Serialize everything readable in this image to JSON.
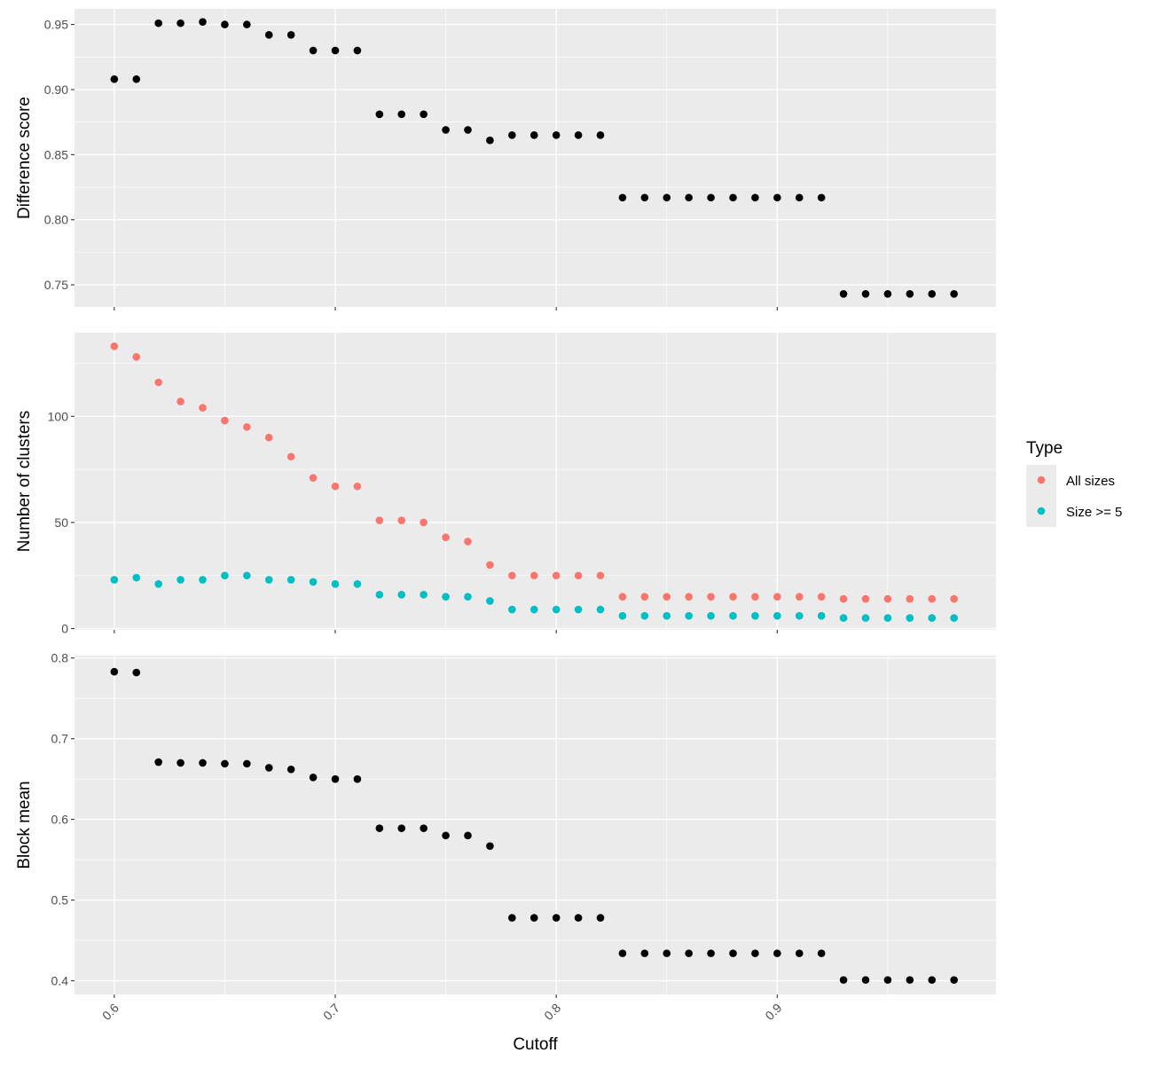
{
  "chart_data": {
    "type": "scatter",
    "x_label": "Cutoff",
    "x_range": [
      0.582,
      0.999
    ],
    "x_ticks": [
      0.6,
      0.7,
      0.8,
      0.9
    ],
    "x_tick_labels": [
      "0.6",
      "0.7",
      "0.8",
      "0.9"
    ],
    "x": [
      0.6,
      0.61,
      0.62,
      0.63,
      0.64,
      0.65,
      0.66,
      0.67,
      0.68,
      0.69,
      0.7,
      0.71,
      0.72,
      0.73,
      0.74,
      0.75,
      0.76,
      0.77,
      0.78,
      0.79,
      0.8,
      0.81,
      0.82,
      0.83,
      0.84,
      0.85,
      0.86,
      0.87,
      0.88,
      0.89,
      0.9,
      0.91,
      0.92,
      0.93,
      0.94,
      0.95,
      0.96,
      0.97,
      0.98
    ],
    "grid": true,
    "panels": [
      {
        "ylabel": "Difference score",
        "ylim": [
          0.733,
          0.962
        ],
        "y_ticks": [
          0.75,
          0.8,
          0.85,
          0.9,
          0.95
        ],
        "y_tick_labels": [
          "0.75",
          "0.80",
          "0.85",
          "0.90",
          "0.95"
        ],
        "series": [
          {
            "color": "#000000",
            "values": [
              0.908,
              0.908,
              0.951,
              0.951,
              0.952,
              0.95,
              0.95,
              0.942,
              0.942,
              0.93,
              0.93,
              0.93,
              0.881,
              0.881,
              0.881,
              0.869,
              0.869,
              0.861,
              0.865,
              0.865,
              0.865,
              0.865,
              0.865,
              0.817,
              0.817,
              0.817,
              0.817,
              0.817,
              0.817,
              0.817,
              0.817,
              0.817,
              0.817,
              0.743,
              0.743,
              0.743,
              0.743,
              0.743,
              0.743
            ]
          }
        ]
      },
      {
        "ylabel": "Number of clusters",
        "ylim": [
          -0.6,
          139.4
        ],
        "y_ticks": [
          0,
          50,
          100
        ],
        "y_tick_labels": [
          "0",
          "50",
          "100"
        ],
        "series": [
          {
            "name": "All sizes",
            "color": "#F8766D",
            "values": [
              133,
              128,
              116,
              107,
              104,
              98,
              95,
              90,
              81,
              71,
              67,
              67,
              51,
              51,
              50,
              43,
              41,
              30,
              25,
              25,
              25,
              25,
              25,
              15,
              15,
              15,
              15,
              15,
              15,
              15,
              15,
              15,
              15,
              14,
              14,
              14,
              14,
              14,
              14
            ]
          },
          {
            "name": "Size >= 5",
            "color": "#00BFC4",
            "values": [
              23,
              24,
              21,
              23,
              23,
              25,
              25,
              23,
              23,
              22,
              21,
              21,
              16,
              16,
              16,
              15,
              15,
              13,
              9,
              9,
              9,
              9,
              9,
              6,
              6,
              6,
              6,
              6,
              6,
              6,
              6,
              6,
              6,
              5,
              5,
              5,
              5,
              5,
              5
            ]
          }
        ]
      },
      {
        "ylabel": "Block mean",
        "ylim": [
          0.383,
          0.803
        ],
        "y_ticks": [
          0.4,
          0.5,
          0.6,
          0.7,
          0.8
        ],
        "y_tick_labels": [
          "0.4",
          "0.5",
          "0.6",
          "0.7",
          "0.8"
        ],
        "series": [
          {
            "color": "#000000",
            "values": [
              0.783,
              0.782,
              0.671,
              0.67,
              0.67,
              0.669,
              0.669,
              0.664,
              0.662,
              0.652,
              0.65,
              0.65,
              0.589,
              0.589,
              0.589,
              0.58,
              0.58,
              0.567,
              0.478,
              0.478,
              0.478,
              0.478,
              0.478,
              0.434,
              0.434,
              0.434,
              0.434,
              0.434,
              0.434,
              0.434,
              0.434,
              0.434,
              0.434,
              0.401,
              0.401,
              0.401,
              0.401,
              0.401,
              0.401
            ]
          }
        ]
      }
    ],
    "legend": {
      "title": "Type",
      "position": "right",
      "entries": [
        {
          "label": "All sizes",
          "color": "#F8766D"
        },
        {
          "label": "Size >= 5",
          "color": "#00BFC4"
        }
      ]
    }
  }
}
